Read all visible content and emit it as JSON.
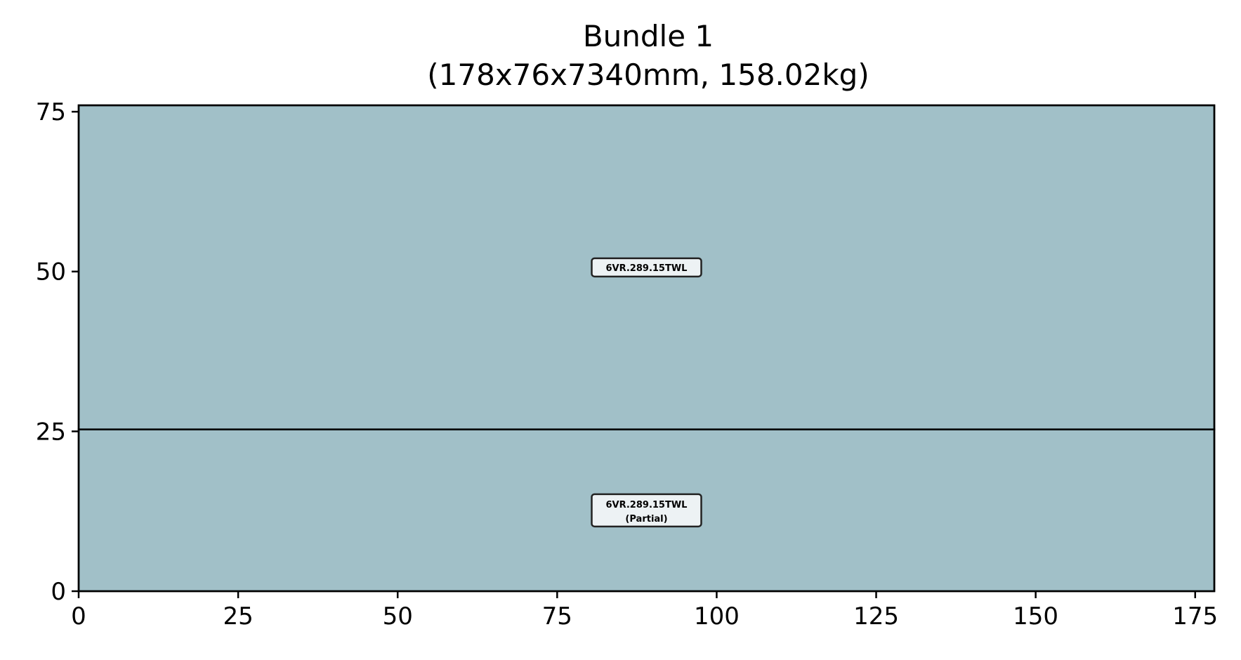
{
  "chart_data": {
    "type": "table",
    "title": "Bundle 1",
    "subtitle": "(178x76x7340mm, 158.02kg)",
    "xlabel": "",
    "ylabel": "",
    "xlim": [
      0,
      178
    ],
    "ylim": [
      0,
      76
    ],
    "x_ticks": [
      0,
      25,
      50,
      75,
      100,
      125,
      150,
      175
    ],
    "y_ticks": [
      0,
      25,
      50,
      75
    ],
    "grid": false,
    "legend": "none",
    "fill_color": "#a1c0c8",
    "label_box_color": "#edf2f4",
    "rects": [
      {
        "x0": 0,
        "y0": 25.3,
        "x1": 178,
        "y1": 76,
        "label": "6VR.289.15TWL",
        "sublabel": ""
      },
      {
        "x0": 0,
        "y0": 0,
        "x1": 178,
        "y1": 25.3,
        "label": "6VR.289.15TWL",
        "sublabel": "(Partial)"
      }
    ]
  }
}
